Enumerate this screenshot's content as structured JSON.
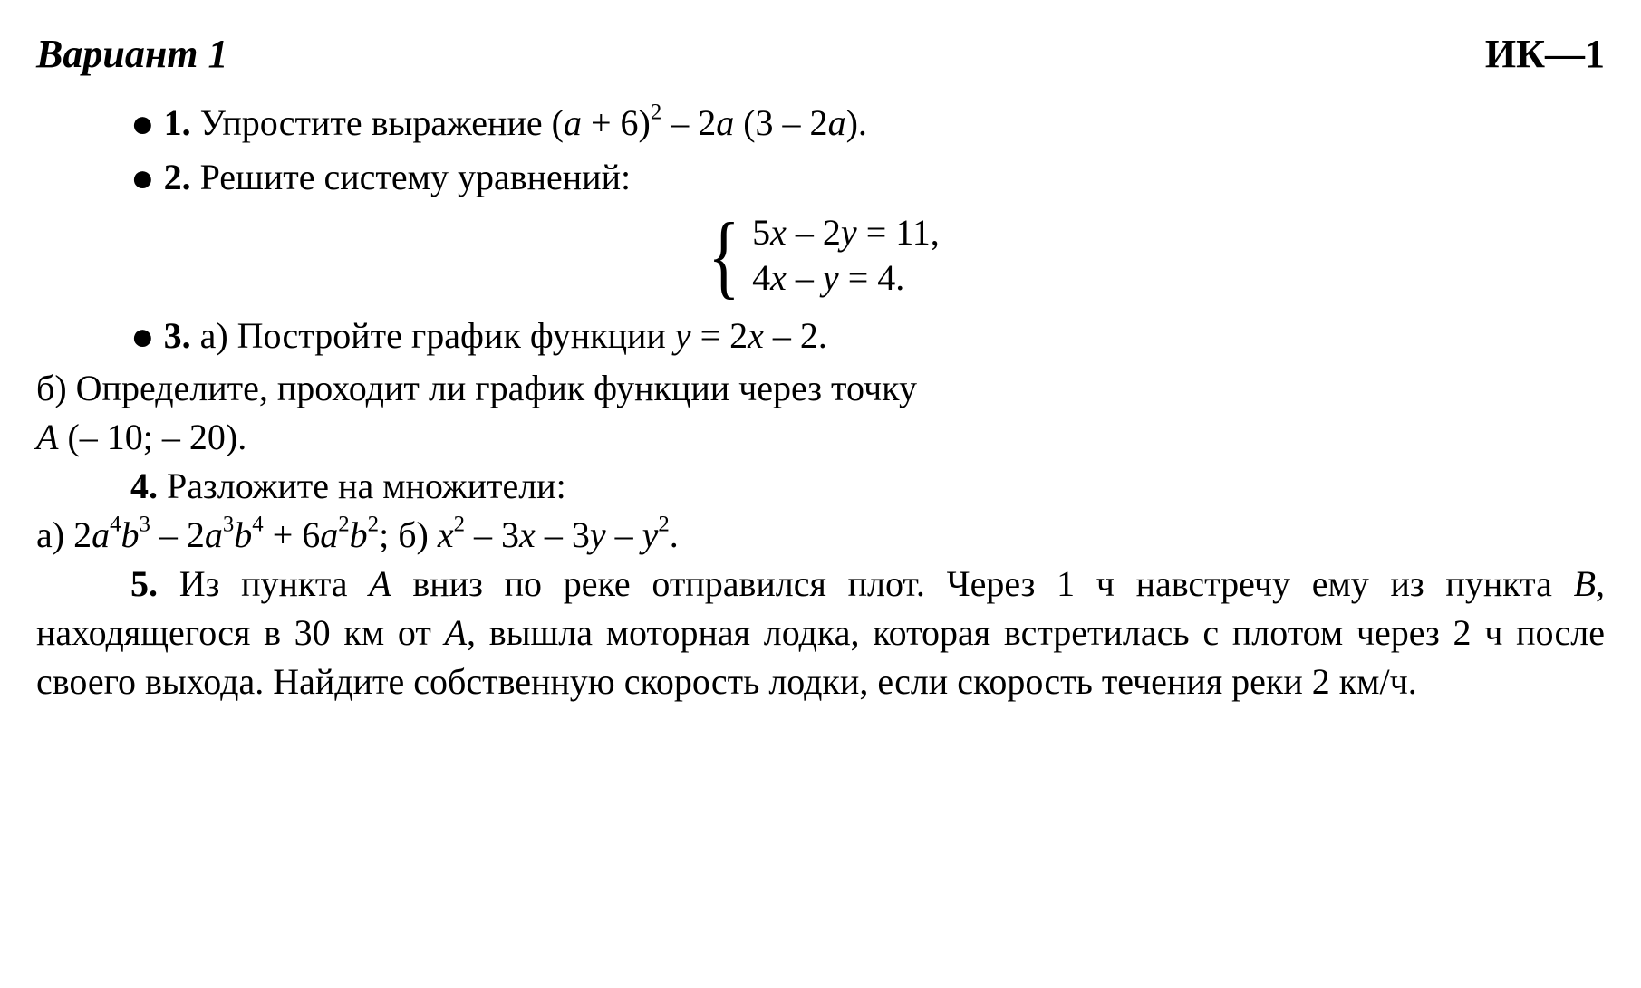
{
  "header": {
    "variant_label": "Вариант 1",
    "ik_label": "ИК—1"
  },
  "q1": {
    "bullet": "●",
    "num": "1.",
    "text": " Упростите выражение (",
    "a1": "a",
    "plus6": " + 6)",
    "sq1": "2",
    "minus": " – 2",
    "a2": "a",
    "open": " (3 – 2",
    "a3": "a",
    "close": ")."
  },
  "q2": {
    "bullet": "●",
    "num": "2.",
    "text": " Решите систему уравнений:",
    "line1_pre": "5",
    "line1_x": "x",
    "line1_mid": " – 2",
    "line1_y": "y",
    "line1_eq": " = 11,",
    "line2_pre": "4",
    "line2_x": "x",
    "line2_mid": " – ",
    "line2_y": "y",
    "line2_eq": " = 4."
  },
  "q3": {
    "bullet": "●",
    "num": "3.",
    "a_label": " а) Постройте график функции ",
    "y": "y",
    "eq": " = 2",
    "x": "x",
    "tail": " – 2.",
    "b_label": "б) Определите, проходит ли график функции через точку",
    "point_A": "A",
    "point_coords": " (– 10;  – 20)."
  },
  "q4": {
    "num": "4.",
    "title": " Разложите на множители:",
    "a_label": "а)  2",
    "a1": "a",
    "e1": "4",
    "b1": "b",
    "e2": "3",
    "m1": " – 2",
    "a2": "a",
    "e3": "3",
    "b2": "b",
    "e4": "4",
    "m2": " + 6",
    "a3": "a",
    "e5": "2",
    "b3": "b",
    "e6": "2",
    "semi": ";  б)  ",
    "x1": "x",
    "xe1": "2",
    "m3": " – 3",
    "x2": "x",
    "m4": " – 3",
    "y1": "y",
    "m5": " – ",
    "y2": "y",
    "ye2": "2",
    "dot": "."
  },
  "q5": {
    "num": "5.",
    "pre": " Из пункта ",
    "A1": "A",
    "t1": " вниз по реке отправился плот. Через 1 ч навстречу ему из пункта ",
    "B": "B",
    "t2": ", находящегося в 30 км от ",
    "A2": "A",
    "t3": ", вышла моторная лодка, которая встретилась с пло­том через 2 ч после своего выхода. Найдите собственную скорость лодки, если скорость течения реки 2 км/ч."
  }
}
